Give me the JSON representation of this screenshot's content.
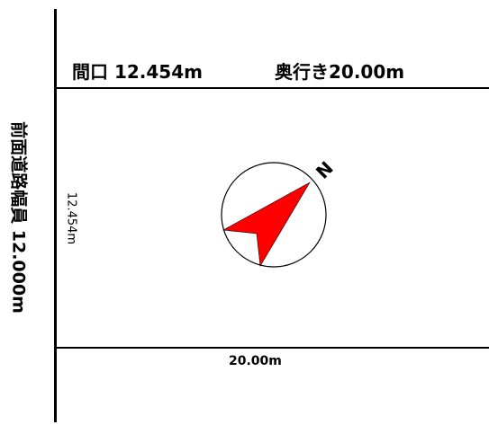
{
  "lot": {
    "frontage_label": "間口 12.454m",
    "depth_label": "奥行き20.00m",
    "road_width_label": "前面道路幅員 12.000m",
    "side_dimension": "12.454m",
    "bottom_dimension": "20.00m"
  },
  "compass": {
    "north_label": "N",
    "arrow_color": "#ff0000"
  }
}
